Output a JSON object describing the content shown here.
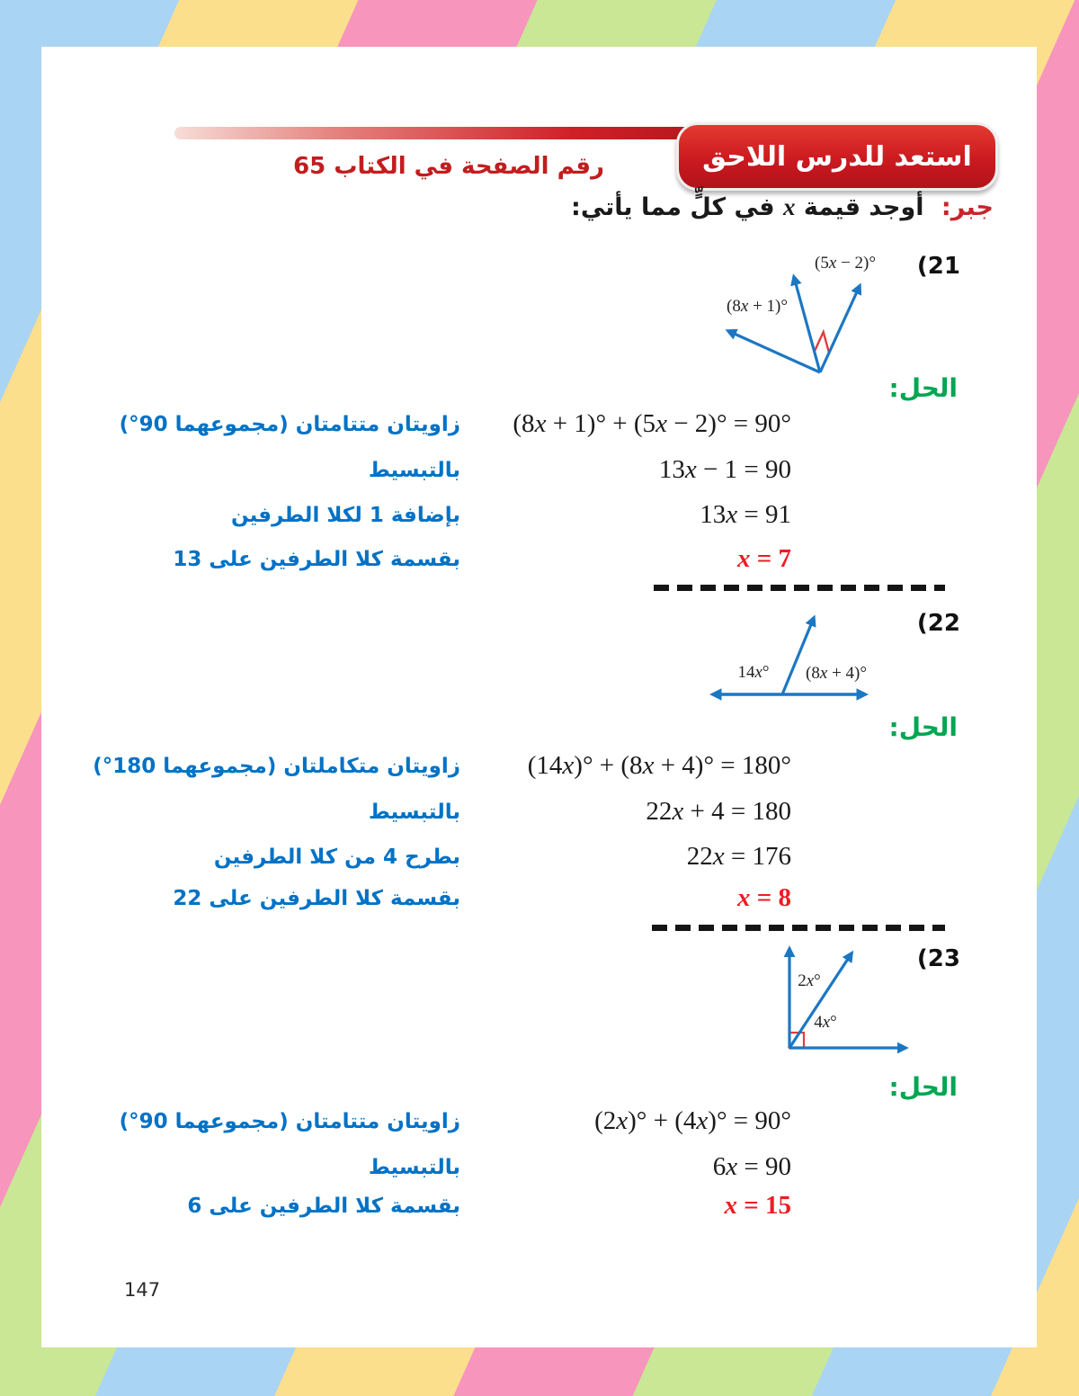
{
  "colors": {
    "banner_red": "#cf2027",
    "subtitle_red": "#c21d1f",
    "heading_red": "#c8252b",
    "solution_green": "#00a651",
    "note_blue": "#0072c6",
    "answer_red": "#ed1c24",
    "diagram_blue": "#1c77c3",
    "angle_mark_red": "#e23c3c",
    "stripe_blue": "#aad4f3",
    "stripe_yellow": "#fbdf8d",
    "stripe_pink": "#f795bd",
    "stripe_green": "#c9e795"
  },
  "banner": {
    "title": "استعد للدرس اللاحق",
    "subtitle": "رقم الصفحة في الكتاب 65"
  },
  "heading": {
    "label": "جبر:",
    "before_x": "أوجد قيمة",
    "x": "x",
    "after_x": "في كلٍّ مما يأتي:"
  },
  "problems": [
    {
      "number": "(21",
      "solution_label": "الحل:",
      "diagram": {
        "label_top": "(5x − 2)°",
        "label_left": "(8x + 1)°"
      },
      "steps": [
        {
          "eq": "(8x + 1)° + (5x − 2)° = 90°",
          "note": "زاويتان متتامتان (مجموعهما 90°)"
        },
        {
          "eq": "13x − 1 = 90",
          "note": "بالتبسيط"
        },
        {
          "eq": "13x = 91",
          "note": "بإضافة 1 لكلا الطرفين"
        },
        {
          "eq": "x = 7",
          "note": "بقسمة كلا الطرفين على 13"
        }
      ]
    },
    {
      "number": "(22",
      "solution_label": "الحل:",
      "diagram": {
        "label_left": "14x°",
        "label_right": "(8x + 4)°"
      },
      "steps": [
        {
          "eq": "(14x)° + (8x + 4)° = 180°",
          "note": "زاويتان متكاملتان (مجموعهما 180°)"
        },
        {
          "eq": "22x + 4 = 180",
          "note": "بالتبسيط"
        },
        {
          "eq": "22x = 176",
          "note": "بطرح 4 من كلا الطرفين"
        },
        {
          "eq": "x = 8",
          "note": "بقسمة كلا الطرفين على 22"
        }
      ]
    },
    {
      "number": "(23",
      "solution_label": "الحل:",
      "diagram": {
        "label_upper": "2x°",
        "label_lower": "4x°"
      },
      "steps": [
        {
          "eq": "(2x)° + (4x)° = 90°",
          "note": "زاويتان متتامتان (مجموعهما 90°)"
        },
        {
          "eq": "6x = 90",
          "note": "بالتبسيط"
        },
        {
          "eq": "x = 15",
          "note": "بقسمة كلا الطرفين على 6"
        }
      ]
    }
  ],
  "page_number": "147"
}
